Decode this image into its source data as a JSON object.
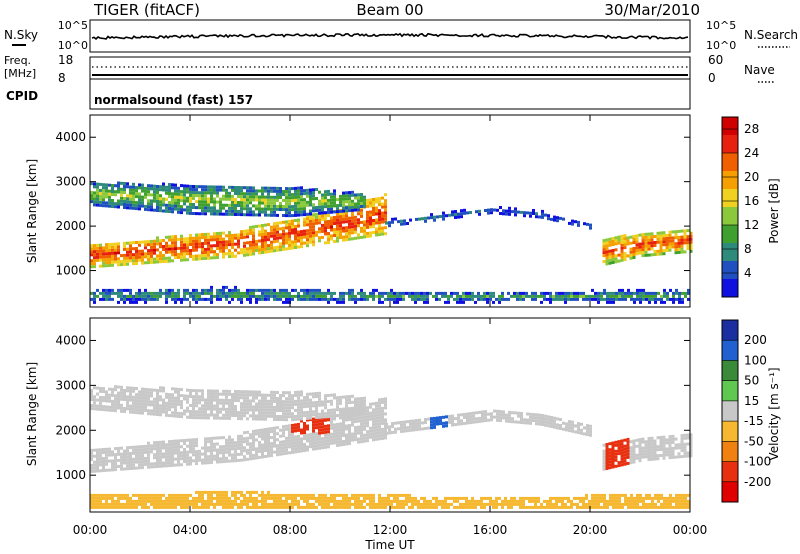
{
  "header": {
    "radar": "TIGER (fitACF)",
    "beam": "Beam 00",
    "date": "30/Mar/2010"
  },
  "top_panels": {
    "nsky_label": "N.Sky",
    "nsearch_label": "N.Search",
    "nsky_ticks": [
      "10^5",
      "10^0"
    ],
    "freq_label_1": "Freq.",
    "freq_label_2": "[MHz]",
    "freq_ticks": [
      "18",
      "8"
    ],
    "nave_label": "Nave",
    "nave_ticks": [
      "60",
      "0"
    ],
    "cpid_label": "CPID",
    "cpid_value": "normalsound (fast) 157"
  },
  "colors": {
    "power_scale": [
      "#1010e0",
      "#2050c0",
      "#2e8a7a",
      "#3fa030",
      "#8cc83c",
      "#f0d020",
      "#f5a000",
      "#f06000",
      "#e82010",
      "#d00000"
    ],
    "velocity_scale": [
      "#1b2fa0",
      "#2060d0",
      "#3a8a3a",
      "#60c850",
      "#c8c8c8",
      "#f5b830",
      "#f08010",
      "#e83010",
      "#e00000"
    ]
  },
  "chart_data": [
    {
      "type": "heatmap",
      "title": "Power",
      "ylabel": "Slant Range [km]",
      "xlabel": "",
      "x_ticks": [
        "00:00",
        "04:00",
        "08:00",
        "12:00",
        "16:00",
        "20:00",
        "00:00"
      ],
      "y_ticks": [
        1000,
        2000,
        3000,
        4000
      ],
      "ylim": [
        180,
        4500
      ],
      "xlim_hours": [
        0,
        24
      ],
      "colorbar_label": "Power [dB]",
      "colorbar_ticks": [
        4,
        8,
        12,
        16,
        20,
        24,
        28
      ],
      "colorbar_range": [
        0,
        30
      ],
      "bands": [
        {
          "x": [
            0.0,
            6.0,
            9.5,
            11.8
          ],
          "y_low": [
            1050,
            1300,
            1600,
            1800
          ],
          "y_high": [
            1550,
            1900,
            2300,
            2700
          ],
          "level": 25
        },
        {
          "x": [
            0.0,
            4.0,
            8.0,
            11.0
          ],
          "y_low": [
            2450,
            2250,
            2200,
            2350
          ],
          "y_high": [
            2950,
            2900,
            2850,
            2700
          ],
          "level": 14
        },
        {
          "x": [
            11.8,
            14.0,
            16.0,
            18.0,
            20.0
          ],
          "y_low": [
            1900,
            2050,
            2200,
            2100,
            1850
          ],
          "y_high": [
            2150,
            2300,
            2450,
            2350,
            2050
          ],
          "level": 6
        },
        {
          "x": [
            20.5,
            22.0,
            24.0
          ],
          "y_low": [
            1100,
            1300,
            1400
          ],
          "y_high": [
            1700,
            1800,
            1900
          ],
          "level": 24
        },
        {
          "x": [
            0.0,
            6.0,
            12.0,
            18.0,
            24.0
          ],
          "y_low": [
            250,
            250,
            250,
            250,
            250
          ],
          "y_high": [
            550,
            600,
            520,
            500,
            560
          ],
          "level": 10
        }
      ]
    },
    {
      "type": "heatmap",
      "title": "Velocity",
      "ylabel": "Slant Range [km]",
      "xlabel": "Time UT",
      "x_ticks": [
        "00:00",
        "04:00",
        "08:00",
        "12:00",
        "16:00",
        "20:00",
        "00:00"
      ],
      "y_ticks": [
        1000,
        2000,
        3000,
        4000
      ],
      "ylim": [
        180,
        4500
      ],
      "xlim_hours": [
        0,
        24
      ],
      "colorbar_label": "Velocity [m s⁻¹]",
      "colorbar_ticks": [
        200,
        100,
        50,
        15,
        -15,
        -50,
        -100,
        -200
      ],
      "bands": [
        {
          "x": [
            0.0,
            6.0,
            9.5,
            11.8
          ],
          "y_low": [
            1050,
            1300,
            1600,
            1800
          ],
          "y_high": [
            1550,
            1900,
            2300,
            2700
          ],
          "level": 0
        },
        {
          "x": [
            0.0,
            4.0,
            8.0,
            11.0
          ],
          "y_low": [
            2450,
            2250,
            2200,
            2350
          ],
          "y_high": [
            2950,
            2900,
            2850,
            2700
          ],
          "level": 0
        },
        {
          "x": [
            11.8,
            14.0,
            16.0,
            18.0,
            20.0
          ],
          "y_low": [
            1900,
            2050,
            2200,
            2100,
            1850
          ],
          "y_high": [
            2150,
            2300,
            2450,
            2350,
            2050
          ],
          "level": 0
        },
        {
          "x": [
            20.5,
            22.0,
            24.0
          ],
          "y_low": [
            1100,
            1300,
            1400
          ],
          "y_high": [
            1700,
            1800,
            1900
          ],
          "level": 0
        },
        {
          "x": [
            0.0,
            6.0,
            12.0,
            18.0,
            24.0
          ],
          "y_low": [
            250,
            250,
            250,
            250,
            250
          ],
          "y_high": [
            550,
            600,
            520,
            500,
            560
          ],
          "level": -40
        }
      ]
    }
  ]
}
